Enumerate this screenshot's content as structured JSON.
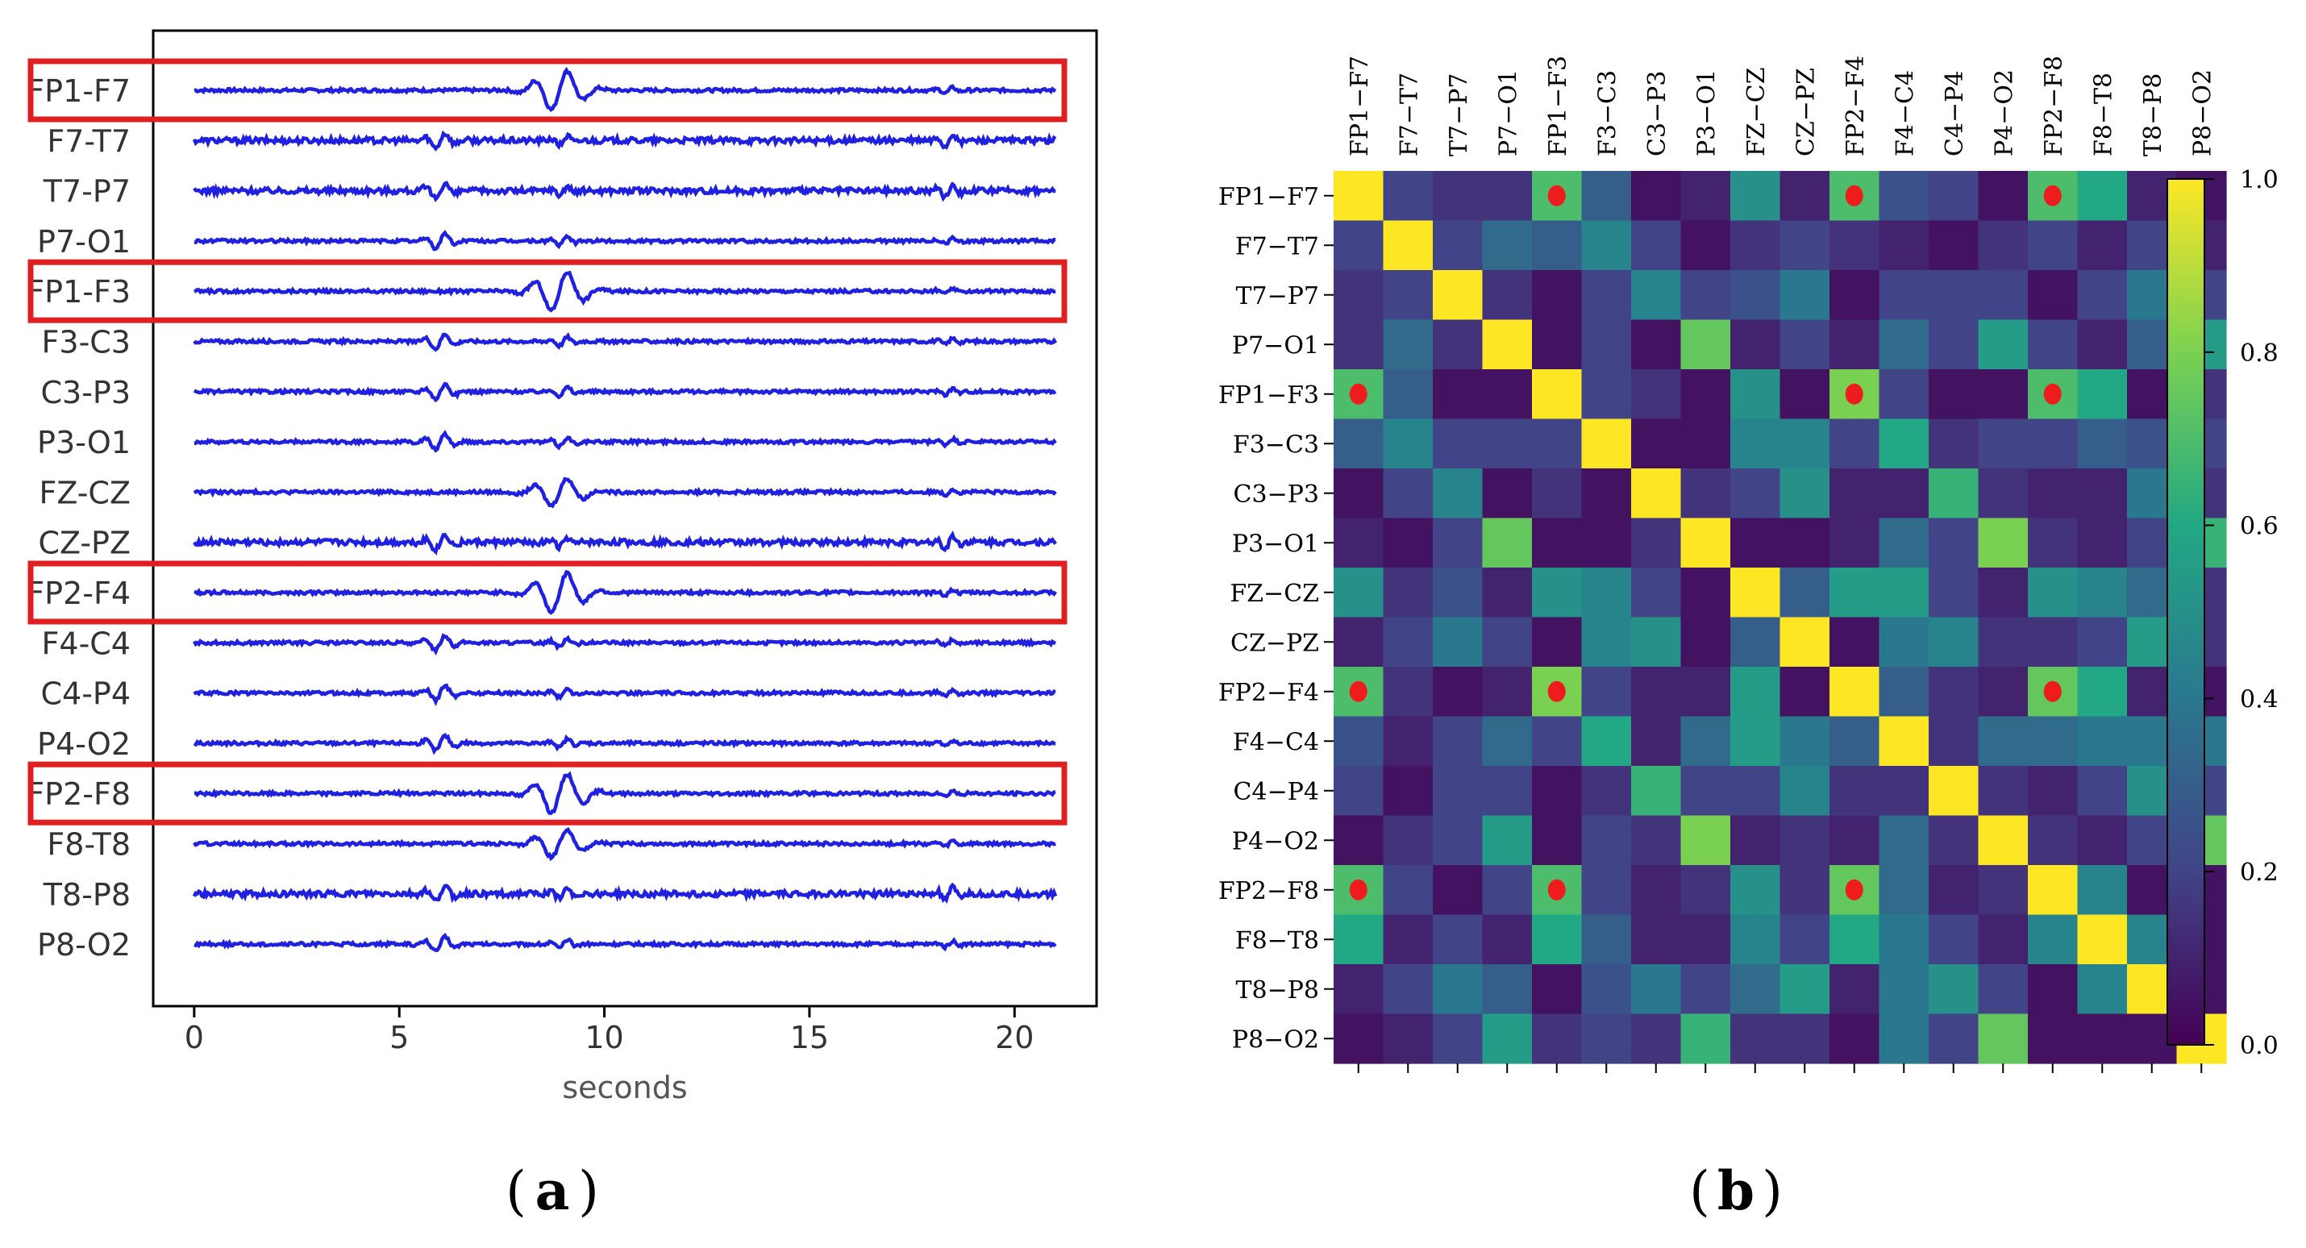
{
  "panels": {
    "a_label": "a",
    "b_label": "b"
  },
  "chart_data": [
    {
      "type": "line",
      "panel": "a",
      "title": "",
      "xlabel": "seconds",
      "ylabel": "",
      "xlim": [
        -1,
        22
      ],
      "x_ticks": [
        0,
        5,
        10,
        15,
        20
      ],
      "x_tick_labels": [
        "0",
        "5",
        "10",
        "15",
        "20"
      ],
      "channels": [
        "FP1-F7",
        "F7-T7",
        "T7-P7",
        "P7-O1",
        "FP1-F3",
        "F3-C3",
        "C3-P3",
        "P3-O1",
        "FZ-CZ",
        "CZ-PZ",
        "FP2-F4",
        "F4-C4",
        "C4-P4",
        "P4-O2",
        "FP2-F8",
        "F8-T8",
        "T8-P8",
        "P8-O2"
      ],
      "highlighted_channels": [
        "FP1-F7",
        "FP1-F3",
        "FP2-F4",
        "FP2-F8"
      ],
      "signal_duration_s": 21,
      "colors": {
        "signal": "#2020e0",
        "highlight": "#e02020",
        "axes": "#000000",
        "text": "#333333"
      }
    },
    {
      "type": "heatmap",
      "panel": "b",
      "title": "",
      "xlabel": "",
      "ylabel": "",
      "labels": [
        "FP1−F7",
        "F7−T7",
        "T7−P7",
        "P7−O1",
        "FP1−F3",
        "F3−C3",
        "C3−P3",
        "P3−O1",
        "FZ−CZ",
        "CZ−PZ",
        "FP2−F4",
        "F4−C4",
        "C4−P4",
        "P4−O2",
        "FP2−F8",
        "F8−T8",
        "T8−P8",
        "P8−O2"
      ],
      "values": [
        [
          1.0,
          0.2,
          0.15,
          0.15,
          0.7,
          0.3,
          0.05,
          0.1,
          0.5,
          0.1,
          0.7,
          0.25,
          0.2,
          0.05,
          0.7,
          0.6,
          0.1,
          0.05
        ],
        [
          0.2,
          1.0,
          0.2,
          0.35,
          0.3,
          0.45,
          0.2,
          0.05,
          0.15,
          0.2,
          0.15,
          0.1,
          0.05,
          0.15,
          0.2,
          0.1,
          0.2,
          0.1
        ],
        [
          0.15,
          0.2,
          1.0,
          0.15,
          0.05,
          0.2,
          0.45,
          0.2,
          0.25,
          0.4,
          0.05,
          0.2,
          0.2,
          0.2,
          0.05,
          0.2,
          0.4,
          0.2
        ],
        [
          0.15,
          0.35,
          0.15,
          1.0,
          0.05,
          0.2,
          0.05,
          0.75,
          0.1,
          0.2,
          0.1,
          0.35,
          0.2,
          0.55,
          0.2,
          0.1,
          0.3,
          0.55
        ],
        [
          0.7,
          0.3,
          0.05,
          0.05,
          1.0,
          0.2,
          0.15,
          0.05,
          0.5,
          0.05,
          0.8,
          0.2,
          0.05,
          0.05,
          0.7,
          0.6,
          0.05,
          0.15
        ],
        [
          0.3,
          0.45,
          0.2,
          0.2,
          0.2,
          1.0,
          0.05,
          0.05,
          0.45,
          0.45,
          0.2,
          0.6,
          0.15,
          0.2,
          0.2,
          0.3,
          0.25,
          0.2
        ],
        [
          0.05,
          0.2,
          0.45,
          0.05,
          0.15,
          0.05,
          1.0,
          0.15,
          0.2,
          0.5,
          0.1,
          0.1,
          0.65,
          0.15,
          0.1,
          0.1,
          0.4,
          0.15
        ],
        [
          0.1,
          0.05,
          0.2,
          0.75,
          0.05,
          0.05,
          0.15,
          1.0,
          0.05,
          0.05,
          0.1,
          0.35,
          0.2,
          0.8,
          0.15,
          0.1,
          0.2,
          0.65
        ],
        [
          0.5,
          0.15,
          0.25,
          0.1,
          0.5,
          0.45,
          0.2,
          0.05,
          1.0,
          0.3,
          0.55,
          0.55,
          0.2,
          0.1,
          0.5,
          0.45,
          0.35,
          0.15
        ],
        [
          0.1,
          0.2,
          0.4,
          0.2,
          0.05,
          0.45,
          0.5,
          0.05,
          0.3,
          1.0,
          0.05,
          0.4,
          0.45,
          0.15,
          0.15,
          0.2,
          0.55,
          0.15
        ],
        [
          0.7,
          0.15,
          0.05,
          0.1,
          0.8,
          0.2,
          0.1,
          0.1,
          0.55,
          0.05,
          1.0,
          0.3,
          0.15,
          0.1,
          0.75,
          0.6,
          0.1,
          0.05
        ],
        [
          0.25,
          0.1,
          0.2,
          0.35,
          0.2,
          0.6,
          0.1,
          0.35,
          0.55,
          0.4,
          0.3,
          1.0,
          0.15,
          0.35,
          0.35,
          0.4,
          0.4,
          0.4
        ],
        [
          0.2,
          0.05,
          0.2,
          0.2,
          0.05,
          0.15,
          0.65,
          0.2,
          0.2,
          0.45,
          0.15,
          0.15,
          1.0,
          0.15,
          0.1,
          0.2,
          0.5,
          0.2
        ],
        [
          0.05,
          0.15,
          0.2,
          0.55,
          0.05,
          0.2,
          0.15,
          0.8,
          0.1,
          0.15,
          0.1,
          0.35,
          0.15,
          1.0,
          0.15,
          0.1,
          0.2,
          0.75
        ],
        [
          0.7,
          0.2,
          0.05,
          0.2,
          0.7,
          0.2,
          0.1,
          0.15,
          0.5,
          0.15,
          0.75,
          0.35,
          0.1,
          0.15,
          1.0,
          0.45,
          0.05,
          0.05
        ],
        [
          0.6,
          0.1,
          0.2,
          0.1,
          0.6,
          0.3,
          0.1,
          0.1,
          0.45,
          0.2,
          0.6,
          0.4,
          0.2,
          0.1,
          0.45,
          1.0,
          0.45,
          0.05
        ],
        [
          0.1,
          0.2,
          0.4,
          0.3,
          0.05,
          0.25,
          0.4,
          0.2,
          0.35,
          0.55,
          0.1,
          0.4,
          0.5,
          0.2,
          0.05,
          0.45,
          1.0,
          0.05
        ],
        [
          0.05,
          0.1,
          0.2,
          0.55,
          0.15,
          0.2,
          0.15,
          0.65,
          0.15,
          0.15,
          0.05,
          0.4,
          0.2,
          0.75,
          0.05,
          0.05,
          0.05,
          1.0
        ]
      ],
      "red_markers": [
        [
          0,
          4
        ],
        [
          0,
          10
        ],
        [
          0,
          14
        ],
        [
          4,
          0
        ],
        [
          4,
          10
        ],
        [
          4,
          14
        ],
        [
          10,
          0
        ],
        [
          10,
          4
        ],
        [
          10,
          14
        ],
        [
          14,
          0
        ],
        [
          14,
          4
        ],
        [
          14,
          10
        ]
      ],
      "colorbar": {
        "range": [
          0.0,
          1.0
        ],
        "ticks": [
          0.0,
          0.2,
          0.4,
          0.6,
          0.8,
          1.0
        ],
        "tick_labels": [
          "0.0",
          "0.2",
          "0.4",
          "0.6",
          "0.8",
          "1.0"
        ],
        "colormap": "viridis"
      },
      "colors": {
        "marker": "#ee1c1c",
        "text": "#000000"
      }
    }
  ]
}
